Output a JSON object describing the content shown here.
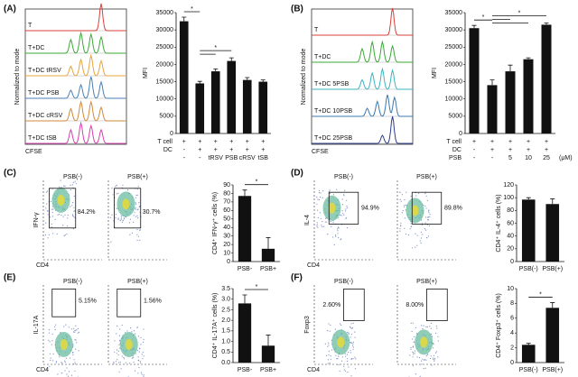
{
  "panels": [
    "(A)",
    "(B)",
    "(C)",
    "(D)",
    "(E)",
    "(F)"
  ],
  "histograms": [
    {
      "ylabel": "Normalized to mode",
      "xlabel": "CFSE",
      "samples": [
        {
          "name": "T",
          "color": "#d9403a"
        },
        {
          "name": "T+DC",
          "color": "#3aaa35"
        },
        {
          "name": "T+DC tRSV",
          "color": "#e8a33c"
        },
        {
          "name": "T+DC PSB",
          "color": "#4a7fb5"
        },
        {
          "name": "T+DC cRSV",
          "color": "#d08a3a"
        },
        {
          "name": "T+DC tSB",
          "color": "#d63fb0"
        }
      ]
    },
    {
      "ylabel": "Normalized to mode",
      "xlabel": "CFSE",
      "samples": [
        {
          "name": "T",
          "color": "#d9403a"
        },
        {
          "name": "T+DC",
          "color": "#3aaa35"
        },
        {
          "name": "T+DC 5PSB",
          "color": "#3bb4c1"
        },
        {
          "name": "T+DC 10PSB",
          "color": "#3a78b0"
        },
        {
          "name": "T+DC 25PSB",
          "color": "#2d3e8c"
        }
      ]
    }
  ],
  "flow": [
    {
      "ylabel": "IFN-γ",
      "xlabel": "CD4",
      "plots": [
        {
          "title": "PSB(-)",
          "gate": "84.2%"
        },
        {
          "title": "PSB(+)",
          "gate": "30.7%"
        }
      ]
    },
    {
      "ylabel": "IL-4",
      "xlabel": "CD4",
      "plots": [
        {
          "title": "PSB(-)",
          "gate": "94.9%"
        },
        {
          "title": "PSB(+)",
          "gate": "89.8%"
        }
      ]
    },
    {
      "ylabel": "IL-17A",
      "xlabel": "CD4",
      "plots": [
        {
          "title": "PSB(-)",
          "gate": "5.15%"
        },
        {
          "title": "PSB(+)",
          "gate": "1.56%"
        }
      ]
    },
    {
      "ylabel": "Foxp3",
      "xlabel": "CD4",
      "plots": [
        {
          "title": "PSB(-)",
          "gate": "2.60%"
        },
        {
          "title": "PSB(+)",
          "gate": "8.00%"
        }
      ]
    }
  ],
  "chart_data": [
    {
      "type": "bar",
      "ylabel": "MFI",
      "values": [
        32500,
        14500,
        18000,
        21000,
        15500,
        15000
      ],
      "errors": [
        1200,
        600,
        700,
        900,
        700,
        500
      ],
      "rows": [
        {
          "name": "T cell",
          "values": [
            "+",
            "+",
            "+",
            "+",
            "+",
            "+"
          ]
        },
        {
          "name": "DC",
          "values": [
            "-",
            "+",
            "+",
            "+",
            "+",
            "+"
          ]
        },
        {
          "name": null,
          "values": [
            "-",
            "-",
            "tRSV",
            "PSB",
            "cRSV",
            "tSB"
          ]
        }
      ],
      "ylim": [
        0,
        35000
      ],
      "yticks": [
        0,
        5000,
        10000,
        15000,
        20000,
        25000,
        30000,
        35000
      ],
      "significance": [
        "*",
        "*"
      ],
      "color": "#111"
    },
    {
      "type": "bar",
      "ylabel": "MFI",
      "values": [
        30500,
        14000,
        18000,
        21500,
        31500
      ],
      "errors": [
        800,
        1500,
        1800,
        400,
        500
      ],
      "rows": [
        {
          "name": "T cell",
          "values": [
            "+",
            "+",
            "+",
            "+",
            "+"
          ]
        },
        {
          "name": "DC",
          "values": [
            "-",
            "+",
            "+",
            "+",
            "+"
          ]
        },
        {
          "name": "PSB",
          "values": [
            "-",
            "-",
            "5",
            "10",
            "25"
          ]
        }
      ],
      "unit": "(μM)",
      "ylim": [
        0,
        35000
      ],
      "yticks": [
        0,
        5000,
        10000,
        15000,
        20000,
        25000,
        30000,
        35000
      ],
      "significance": [
        "*",
        "*"
      ],
      "color": "#111"
    },
    {
      "type": "bar",
      "ylabel": "CD4⁺ IFN-γ⁺ cells (%)",
      "categories": [
        "PSB-",
        "PSB+"
      ],
      "values": [
        77,
        15
      ],
      "errors": [
        7,
        13
      ],
      "ylim": [
        0,
        90
      ],
      "yticks": [
        0,
        10,
        20,
        30,
        40,
        50,
        60,
        70,
        80,
        90
      ],
      "significance": [
        "*"
      ],
      "color": "#111"
    },
    {
      "type": "bar",
      "ylabel": "CD4⁺ IL-4⁺ cells (%)",
      "categories": [
        "PSB(-)",
        "PSB(+)"
      ],
      "values": [
        97,
        90
      ],
      "errors": [
        3,
        8
      ],
      "ylim": [
        0,
        120
      ],
      "yticks": [
        0,
        20,
        40,
        60,
        80,
        100,
        120
      ],
      "significance": [],
      "color": "#111"
    },
    {
      "type": "bar",
      "ylabel": "CD4⁺ IL-17A⁺ cells (%)",
      "categories": [
        "PSB-",
        "PSB+"
      ],
      "values": [
        2.8,
        0.8
      ],
      "errors": [
        0.4,
        0.5
      ],
      "ylim": [
        0,
        3.5
      ],
      "yticks": [
        {
          "value": 0,
          "label": "0.0"
        },
        0.5,
        {
          "value": 1,
          "label": "1.0"
        },
        1.5,
        {
          "value": 2,
          "label": "2.0"
        },
        2.5,
        {
          "value": 3,
          "label": "3.0"
        },
        3.5
      ],
      "significance": [
        "*"
      ],
      "color": "#111"
    },
    {
      "type": "bar",
      "ylabel": "CD4⁺ Foxp3⁺ cells (%)",
      "categories": [
        "PSB(-)",
        "PSB(+)"
      ],
      "values": [
        2.4,
        7.4
      ],
      "errors": [
        0.2,
        0.7
      ],
      "ylim": [
        0,
        10
      ],
      "yticks": [
        0,
        2,
        4,
        6,
        8,
        10
      ],
      "significance": [
        "*"
      ],
      "color": "#111"
    }
  ]
}
